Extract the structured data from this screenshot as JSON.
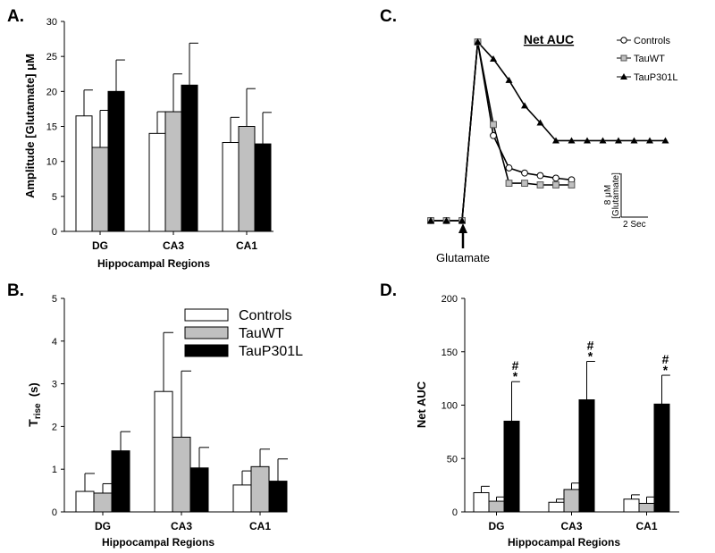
{
  "colors": {
    "controls": "#ffffff",
    "tauwt": "#c0c0c0",
    "taup301l": "#000000",
    "edge": "#000000"
  },
  "chart_data": [
    {
      "panel": "A.",
      "type": "bar",
      "categories": [
        "DG",
        "CA3",
        "CA1"
      ],
      "series": [
        {
          "name": "Controls",
          "values": [
            16.5,
            14.0,
            12.7
          ],
          "errors": [
            3.7,
            3.1,
            3.6
          ]
        },
        {
          "name": "TauWT",
          "values": [
            12.0,
            17.1,
            15.0
          ],
          "errors": [
            5.3,
            5.4,
            5.4
          ]
        },
        {
          "name": "TauP301L",
          "values": [
            20.0,
            20.9,
            12.5
          ],
          "errors": [
            4.5,
            6.0,
            4.5
          ]
        }
      ],
      "ylabel": "Amplitude [Glutamate] μM",
      "xlabel": "Hippocampal Regions",
      "ylim": [
        0,
        30
      ],
      "yticks": [
        "0",
        "5",
        "10",
        "15",
        "20",
        "25",
        "30"
      ]
    },
    {
      "panel": "B.",
      "type": "bar",
      "categories": [
        "DG",
        "CA3",
        "CA1"
      ],
      "series": [
        {
          "name": "Controls",
          "values": [
            0.48,
            2.82,
            0.63
          ],
          "errors": [
            0.42,
            1.38,
            0.33
          ]
        },
        {
          "name": "TauWT",
          "values": [
            0.44,
            1.75,
            1.06
          ],
          "errors": [
            0.22,
            1.55,
            0.41
          ]
        },
        {
          "name": "TauP301L",
          "values": [
            1.43,
            1.03,
            0.72
          ],
          "errors": [
            0.45,
            0.48,
            0.52
          ]
        }
      ],
      "ylabel_main": "T",
      "ylabel_sub": "rise",
      "ylabel_unit": "  (s)",
      "xlabel": "Hippocampal Regions",
      "ylim": [
        0,
        5
      ],
      "yticks": [
        "0",
        "1",
        "2",
        "3",
        "4",
        "5"
      ],
      "legend": [
        "Controls",
        "TauWT",
        "TauP301L"
      ]
    },
    {
      "panel": "C.",
      "type": "line",
      "title": "Net AUC",
      "series": [
        {
          "name": "Controls",
          "x": [
            0,
            1,
            2,
            3,
            4,
            5,
            6,
            7,
            8,
            9
          ],
          "y": [
            0,
            0,
            0,
            21,
            10,
            6.2,
            5.6,
            5.3,
            5.0,
            4.8
          ]
        },
        {
          "name": "TauWT",
          "x": [
            0,
            1,
            2,
            3,
            4,
            5,
            6,
            7,
            8,
            9
          ],
          "y": [
            0,
            0,
            0,
            21,
            11.3,
            4.4,
            4.4,
            4.2,
            4.2,
            4.2
          ]
        },
        {
          "name": "TauP301L",
          "x": [
            0,
            1,
            2,
            3,
            4,
            5,
            6,
            7,
            8,
            9,
            10,
            11,
            12,
            13,
            14,
            15
          ],
          "y": [
            0,
            0,
            0,
            21,
            19,
            16.5,
            13.5,
            11.5,
            9.4,
            9.4,
            9.4,
            9.4,
            9.4,
            9.4,
            9.4,
            9.4
          ]
        }
      ],
      "annotation": "Glutamate",
      "scalebar_y": "8 μM",
      "scalebar_y_unit": "[Glutamate]",
      "scalebar_x": "2 Sec"
    },
    {
      "panel": "D.",
      "type": "bar",
      "categories": [
        "DG",
        "CA3",
        "CA1"
      ],
      "series": [
        {
          "name": "Controls",
          "values": [
            18,
            9,
            12
          ],
          "errors": [
            6,
            3,
            4
          ]
        },
        {
          "name": "TauWT",
          "values": [
            10,
            21,
            8
          ],
          "errors": [
            4,
            6,
            6
          ]
        },
        {
          "name": "TauP301L",
          "values": [
            85,
            105,
            101
          ],
          "errors": [
            37,
            36,
            27
          ]
        }
      ],
      "ylabel": "Net AUC",
      "xlabel": "Hippocampal Regions",
      "ylim": [
        0,
        200
      ],
      "yticks": [
        "0",
        "50",
        "100",
        "150",
        "200"
      ],
      "significance": [
        "#",
        "*"
      ]
    }
  ]
}
